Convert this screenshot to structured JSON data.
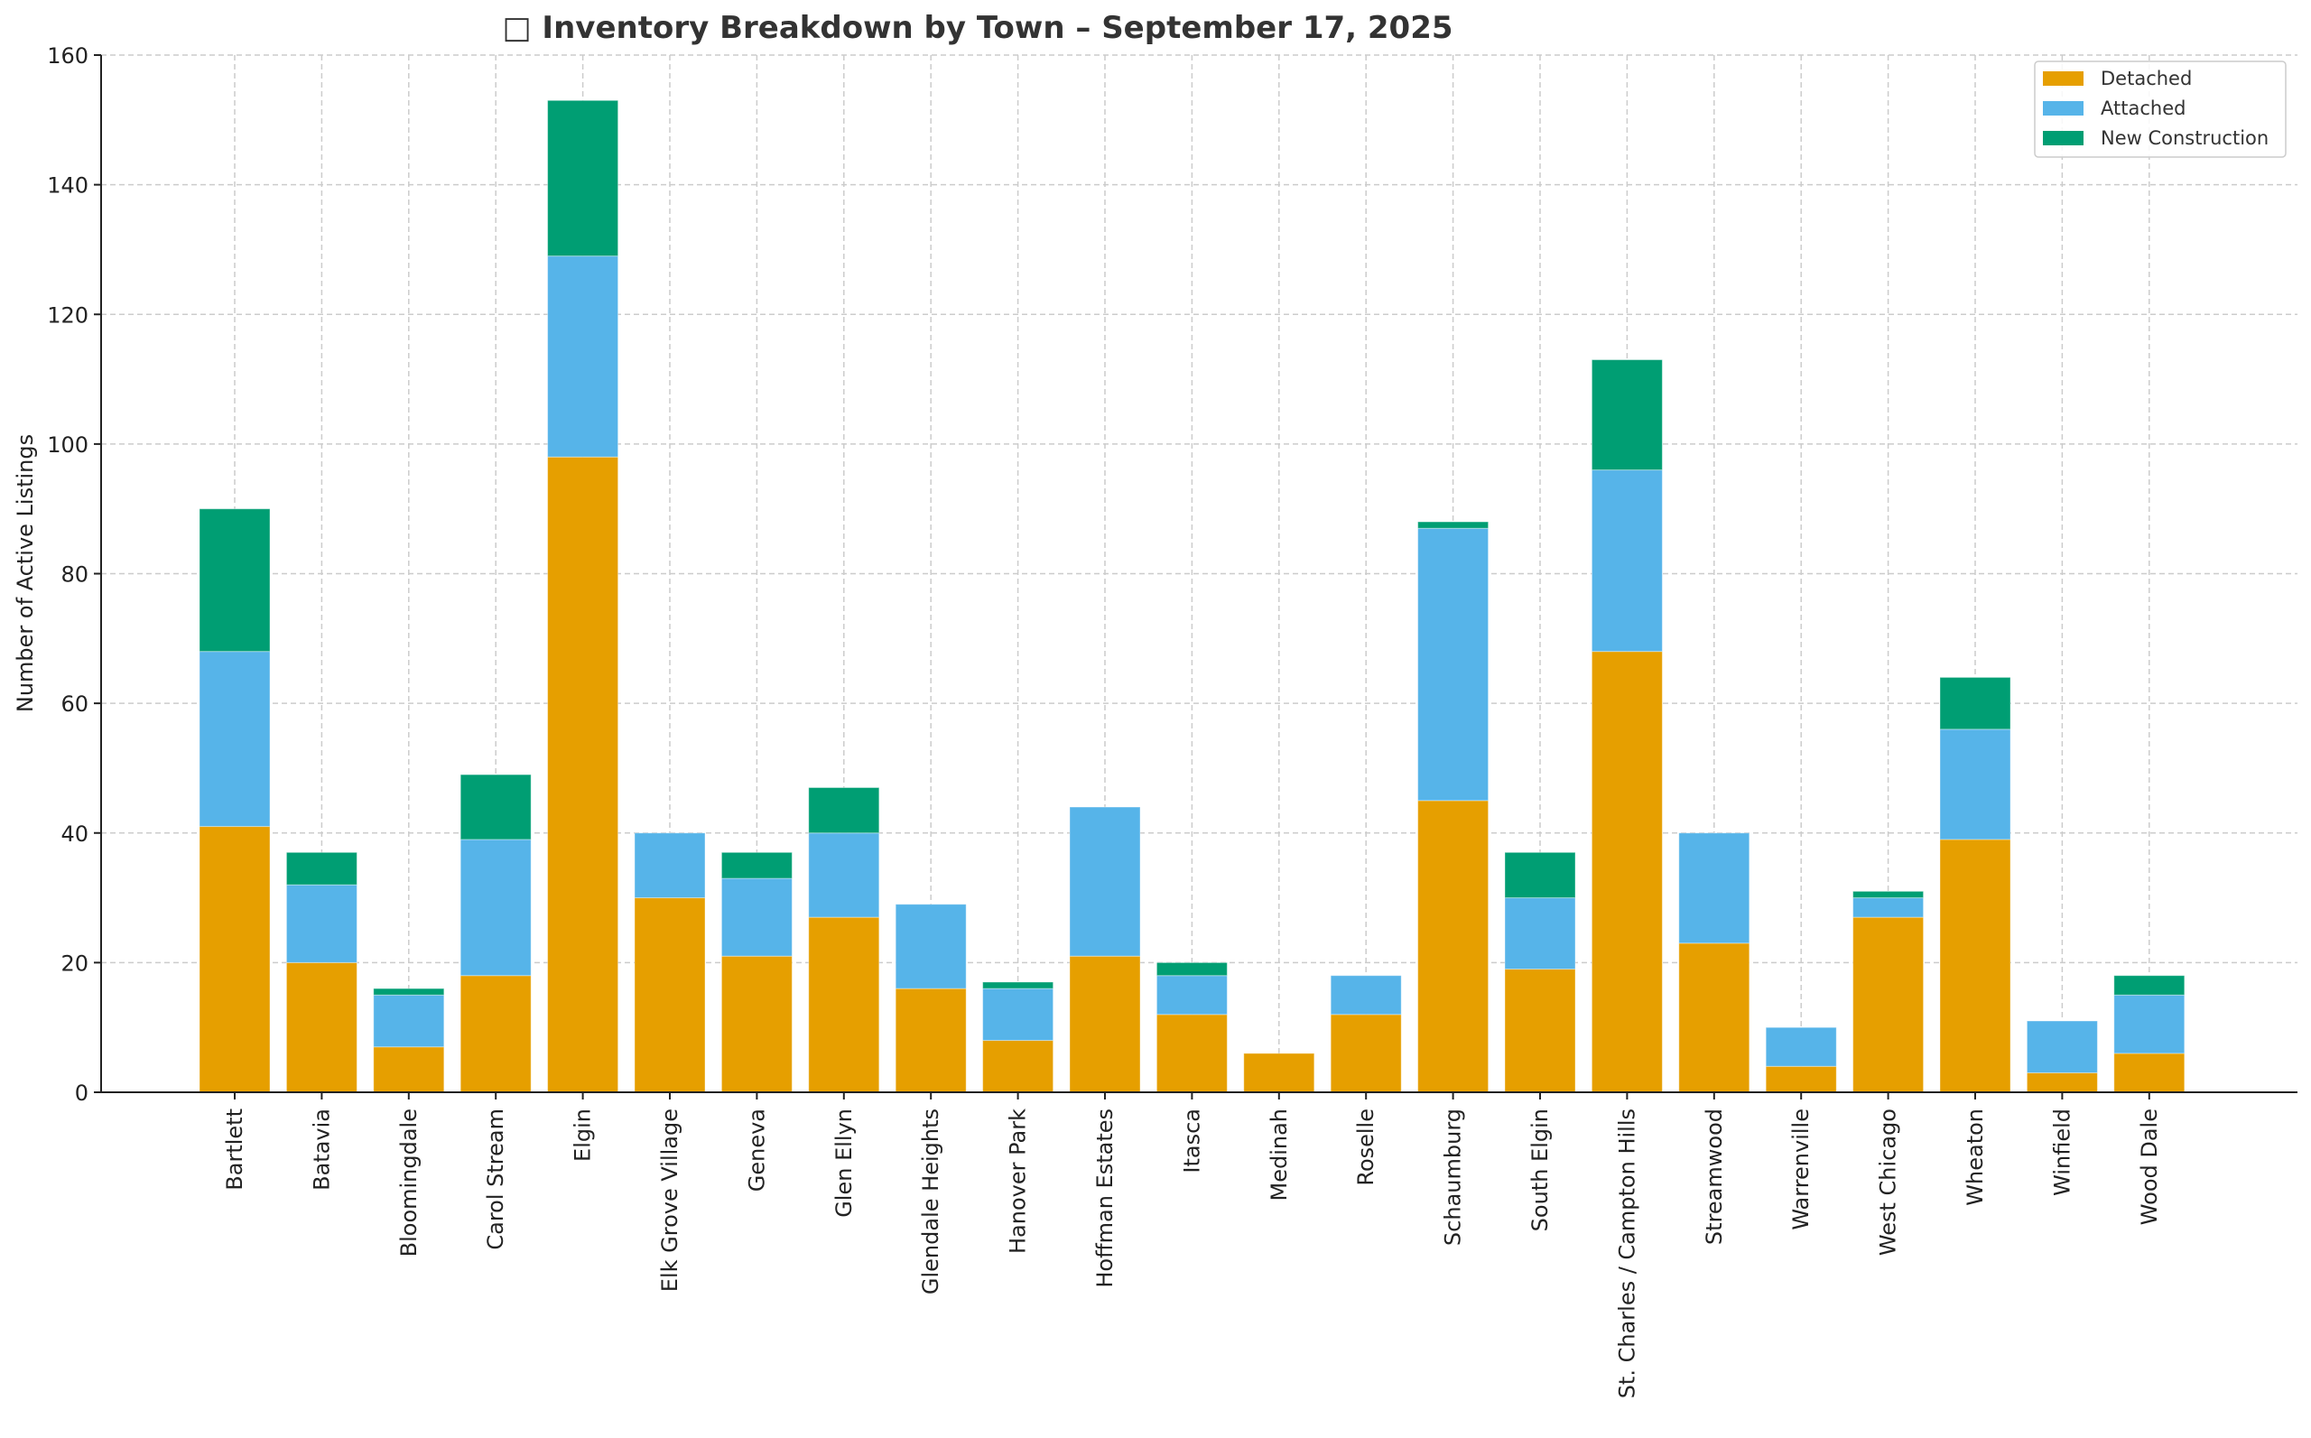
{
  "chart_data": {
    "type": "bar",
    "stacked": true,
    "title": "□ Inventory Breakdown by Town – September 17, 2025",
    "title_icon": "missing-glyph-box",
    "xlabel": "",
    "ylabel": "Number of Active Listings",
    "ylim": [
      0,
      160
    ],
    "yticks": [
      0,
      20,
      40,
      60,
      80,
      100,
      120,
      140,
      160
    ],
    "grid": true,
    "legend_position": "top-right",
    "categories": [
      "Bartlett",
      "Batavia",
      "Bloomingdale",
      "Carol Stream",
      "Elgin",
      "Elk Grove Village",
      "Geneva",
      "Glen Ellyn",
      "Glendale Heights",
      "Hanover Park",
      "Hoffman Estates",
      "Itasca",
      "Medinah",
      "Roselle",
      "Schaumburg",
      "South Elgin",
      "St. Charles / Campton Hills",
      "Streamwood",
      "Warrenville",
      "West Chicago",
      "Wheaton",
      "Winfield",
      "Wood Dale"
    ],
    "series": [
      {
        "name": "Detached",
        "color": "#E69F00",
        "values": [
          41,
          20,
          7,
          18,
          98,
          30,
          21,
          27,
          16,
          8,
          21,
          12,
          6,
          12,
          45,
          19,
          68,
          23,
          4,
          27,
          39,
          3,
          6
        ]
      },
      {
        "name": "Attached",
        "color": "#56B4E9",
        "values": [
          27,
          12,
          8,
          21,
          31,
          10,
          12,
          13,
          13,
          8,
          23,
          6,
          0,
          6,
          42,
          11,
          28,
          17,
          6,
          3,
          17,
          8,
          9
        ]
      },
      {
        "name": "New Construction",
        "color": "#009E73",
        "values": [
          22,
          5,
          1,
          10,
          24,
          0,
          4,
          7,
          0,
          1,
          0,
          2,
          0,
          0,
          1,
          7,
          17,
          0,
          0,
          1,
          8,
          0,
          3
        ]
      }
    ]
  }
}
